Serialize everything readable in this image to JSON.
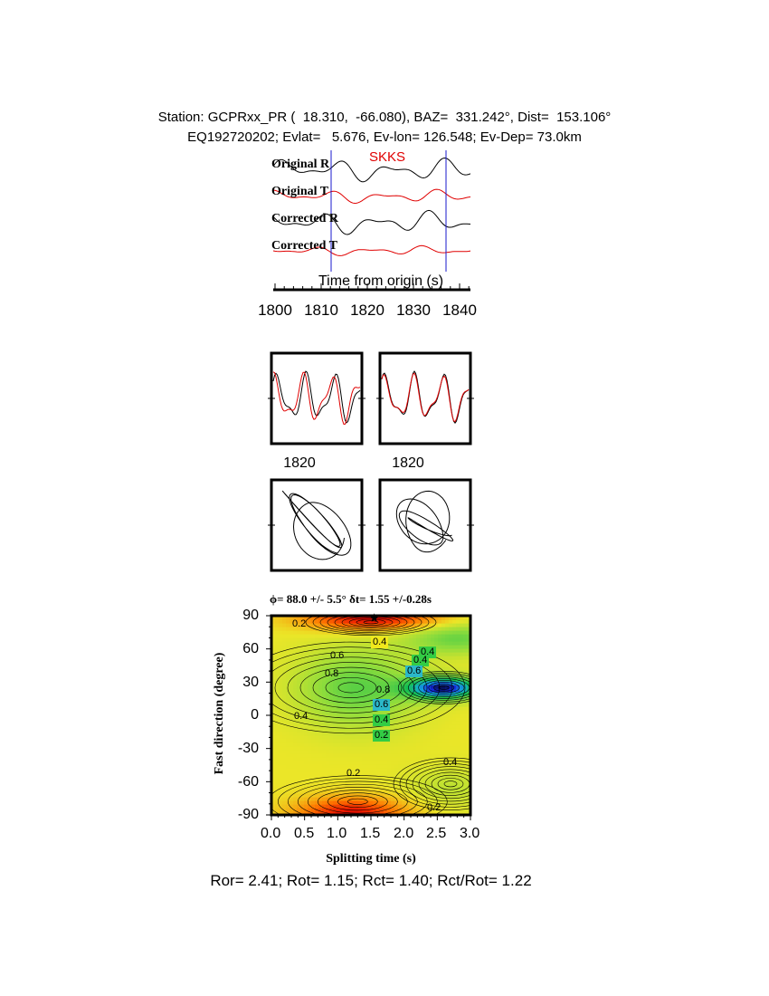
{
  "header": {
    "station_line": "Station: GCPRxx_PR (  18.310,  -66.080), BAZ=  331.242°, Dist=  153.106°",
    "event_line": "EQ192720202; Evlat=   5.676, Ev-lon= 126.548; Ev-Dep= 73.0km"
  },
  "traces": {
    "labels": [
      "Original R",
      "Original T",
      "Corrected R",
      "Corrected T"
    ],
    "phase": "SKKS",
    "xlabel": "Time from origin (s)",
    "xticks": [
      "1800",
      "1810",
      "1820",
      "1830",
      "1840"
    ],
    "colors": {
      "radial": "#000000",
      "transverse": "#e00000",
      "marker": "#1a1acc"
    }
  },
  "panels": {
    "tick_left": "1820",
    "tick_right": "1820"
  },
  "grid_search": {
    "title": "ϕ= 88.0 +/- 5.5° δt= 1.55 +/-0.28s",
    "ylabel": "Fast direction (degree)",
    "xlabel": "Splitting time (s)",
    "yticks": [
      "90",
      "60",
      "30",
      "0",
      "-30",
      "-60",
      "-90"
    ],
    "xticks": [
      "0.0",
      "0.5",
      "1.0",
      "1.5",
      "2.0",
      "2.5",
      "3.0"
    ],
    "contour_labels": [
      "0.2",
      "0.4",
      "0.4",
      "0.6",
      "0.8",
      "0.6",
      "0.4",
      "0.2",
      "0.4",
      "0.4",
      "0.2",
      "0.2",
      "0.4",
      "0.6",
      "0.8"
    ]
  },
  "footer": {
    "ratios": "Ror= 2.41; Rot= 1.15; Rct= 1.40; Rct/Rot= 1.22"
  },
  "chart_data": {
    "type": "heatmap",
    "title": "ϕ= 88.0 +/- 5.5° δt= 1.55 +/-0.28s",
    "xlabel": "Splitting time (s)",
    "ylabel": "Fast direction (degree)",
    "xlim": [
      0.0,
      3.0
    ],
    "ylim": [
      -90,
      90
    ],
    "best_fit": {
      "dt": 1.55,
      "phi": 88.0
    },
    "trace_time_range": [
      1800,
      1840
    ]
  }
}
